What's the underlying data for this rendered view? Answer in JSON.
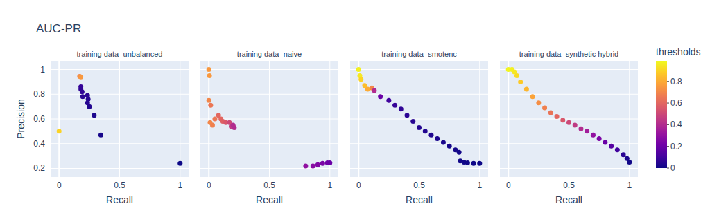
{
  "chart_data": {
    "type": "scatter",
    "title": "AUC-PR",
    "x_label": "Recall",
    "y_label": "Precision",
    "xlim": [
      -0.07,
      1.07
    ],
    "xticks": [
      0,
      0.5,
      1
    ],
    "ylim": [
      0.13,
      1.07
    ],
    "yticks": [
      0.2,
      0.4,
      0.6,
      0.8,
      1
    ],
    "grid": true,
    "marker": "circle",
    "colorbar": {
      "title": "thresholds",
      "range": [
        0,
        0.99
      ],
      "ticks": [
        0,
        0.2,
        0.4,
        0.6,
        0.8
      ]
    },
    "series": [
      {
        "name": "training data=unbalanced",
        "x": [
          0,
          0.17,
          0.18,
          0.18,
          0.18,
          0.19,
          0.195,
          0.235,
          0.24,
          0.235,
          0.25,
          0.29,
          0.345,
          1
        ],
        "values": [
          0.5,
          0.944,
          0.94,
          0.86,
          0.84,
          0.82,
          0.78,
          0.79,
          0.76,
          0.73,
          0.7,
          0.63,
          0.47,
          0.24
        ],
        "thresholds": [
          0.9,
          0.7,
          0.75,
          0.08,
          0.07,
          0.07,
          0.06,
          0.06,
          0.05,
          0.05,
          0.04,
          0.03,
          0.02,
          0
        ]
      },
      {
        "name": "training data=naive",
        "x": [
          0,
          0.005,
          0,
          0.015,
          0.01,
          0.03,
          0.05,
          0.08,
          0.1,
          0.115,
          0.14,
          0.17,
          0.185,
          0.2,
          0.21,
          0.8,
          0.86,
          0.9,
          0.94,
          0.98,
          1
        ],
        "values": [
          1,
          0.95,
          0.75,
          0.71,
          0.57,
          0.55,
          0.6,
          0.63,
          0.6,
          0.58,
          0.57,
          0.57,
          0.54,
          0.55,
          0.53,
          0.22,
          0.22,
          0.23,
          0.24,
          0.245,
          0.245
        ],
        "thresholds": [
          0.75,
          0.75,
          0.7,
          0.65,
          0.7,
          0.68,
          0.65,
          0.6,
          0.6,
          0.58,
          0.55,
          0.5,
          0.45,
          0.4,
          0.4,
          0.3,
          0.28,
          0.26,
          0.24,
          0.22,
          0.2
        ]
      },
      {
        "name": "training data=smotenc",
        "x": [
          0,
          0.01,
          0.02,
          0.05,
          0.075,
          0.11,
          0.13,
          0.18,
          0.25,
          0.3,
          0.35,
          0.4,
          0.45,
          0.5,
          0.55,
          0.6,
          0.65,
          0.7,
          0.75,
          0.8,
          0.83,
          0.84,
          0.87,
          0.9,
          0.95,
          1
        ],
        "values": [
          1,
          0.95,
          0.92,
          0.87,
          0.84,
          0.85,
          0.83,
          0.78,
          0.75,
          0.71,
          0.68,
          0.63,
          0.58,
          0.53,
          0.5,
          0.47,
          0.44,
          0.41,
          0.38,
          0.35,
          0.33,
          0.26,
          0.25,
          0.245,
          0.24,
          0.24
        ],
        "thresholds": [
          0.97,
          0.95,
          0.9,
          0.85,
          0.8,
          0.7,
          0.4,
          0.2,
          0.1,
          0.08,
          0.07,
          0.06,
          0.05,
          0.045,
          0.04,
          0.035,
          0.03,
          0.025,
          0.02,
          0.015,
          0.012,
          0.01,
          0.008,
          0.005,
          0.003,
          0
        ]
      },
      {
        "name": "training data=synthetic hybrid",
        "x": [
          0,
          0.03,
          0.05,
          0.07,
          0.1,
          0.15,
          0.2,
          0.25,
          0.3,
          0.35,
          0.4,
          0.45,
          0.5,
          0.55,
          0.6,
          0.65,
          0.7,
          0.75,
          0.8,
          0.85,
          0.9,
          0.95,
          0.98,
          1
        ],
        "values": [
          1,
          1,
          0.98,
          0.95,
          0.9,
          0.84,
          0.78,
          0.73,
          0.69,
          0.65,
          0.62,
          0.59,
          0.57,
          0.55,
          0.52,
          0.5,
          0.47,
          0.44,
          0.41,
          0.38,
          0.35,
          0.31,
          0.28,
          0.25
        ],
        "thresholds": [
          0.98,
          0.97,
          0.95,
          0.92,
          0.88,
          0.83,
          0.78,
          0.72,
          0.68,
          0.64,
          0.6,
          0.55,
          0.5,
          0.45,
          0.4,
          0.35,
          0.3,
          0.25,
          0.2,
          0.15,
          0.1,
          0.06,
          0.03,
          0.01
        ]
      }
    ]
  }
}
